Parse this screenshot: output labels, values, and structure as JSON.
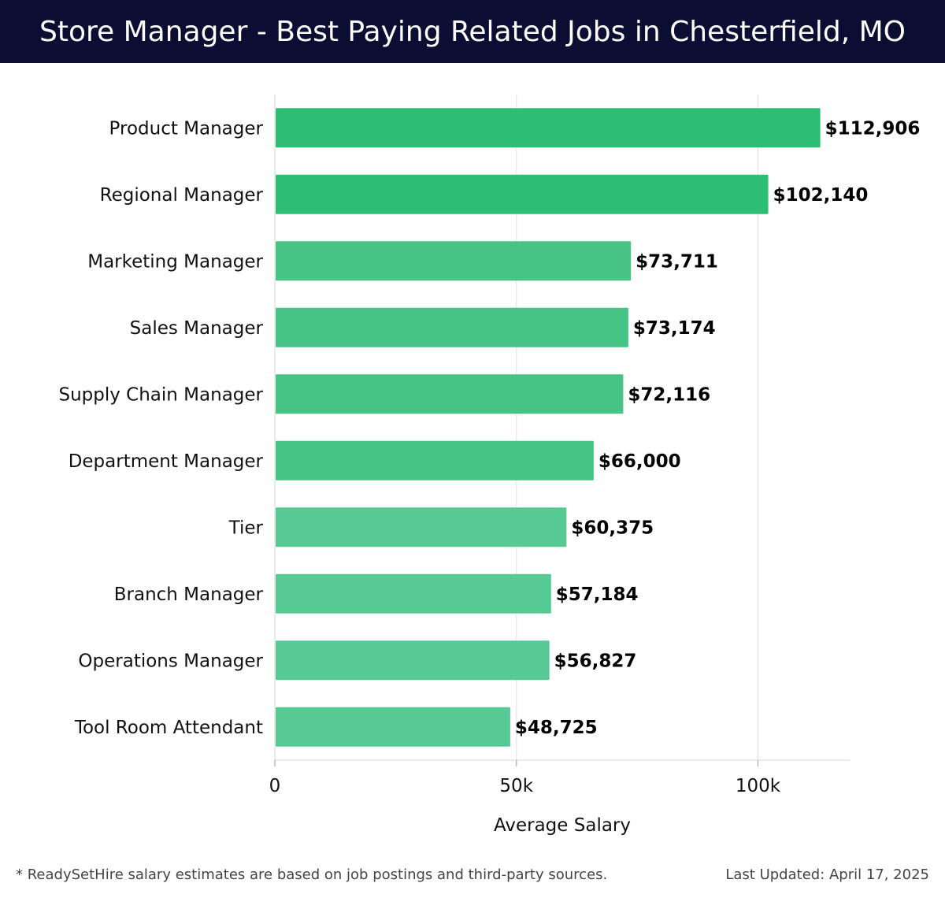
{
  "header": {
    "title": "Store Manager - Best Paying Related Jobs in Chesterfield, MO"
  },
  "footer": {
    "note": "* ReadySetHire salary estimates are based on job postings and third-party sources.",
    "updated": "Last Updated: April 17, 2025"
  },
  "colors": {
    "header_bg": "#0b0d33",
    "bar_top": "#2dbd74",
    "bar_mid": "#47c385",
    "bar_low": "#56c995",
    "grid": "#e3e3e3"
  },
  "chart_data": {
    "type": "bar",
    "orientation": "horizontal",
    "title": "Store Manager - Best Paying Related Jobs in Chesterfield, MO",
    "xlabel": "Average Salary",
    "ylabel": "",
    "xlim": [
      0,
      119000
    ],
    "ticks": [
      {
        "value": 0,
        "label": "0"
      },
      {
        "value": 50000,
        "label": "50k"
      },
      {
        "value": 100000,
        "label": "100k"
      }
    ],
    "grid": true,
    "categories": [
      "Product Manager",
      "Regional Manager",
      "Marketing Manager",
      "Sales Manager",
      "Supply Chain Manager",
      "Department Manager",
      "Tier",
      "Branch Manager",
      "Operations Manager",
      "Tool Room Attendant"
    ],
    "values": [
      112906,
      102140,
      73711,
      73174,
      72116,
      66000,
      60375,
      57184,
      56827,
      48725
    ],
    "value_labels": [
      "$112,906",
      "$102,140",
      "$73,711",
      "$73,174",
      "$72,116",
      "$66,000",
      "$60,375",
      "$57,184",
      "$56,827",
      "$48,725"
    ]
  }
}
